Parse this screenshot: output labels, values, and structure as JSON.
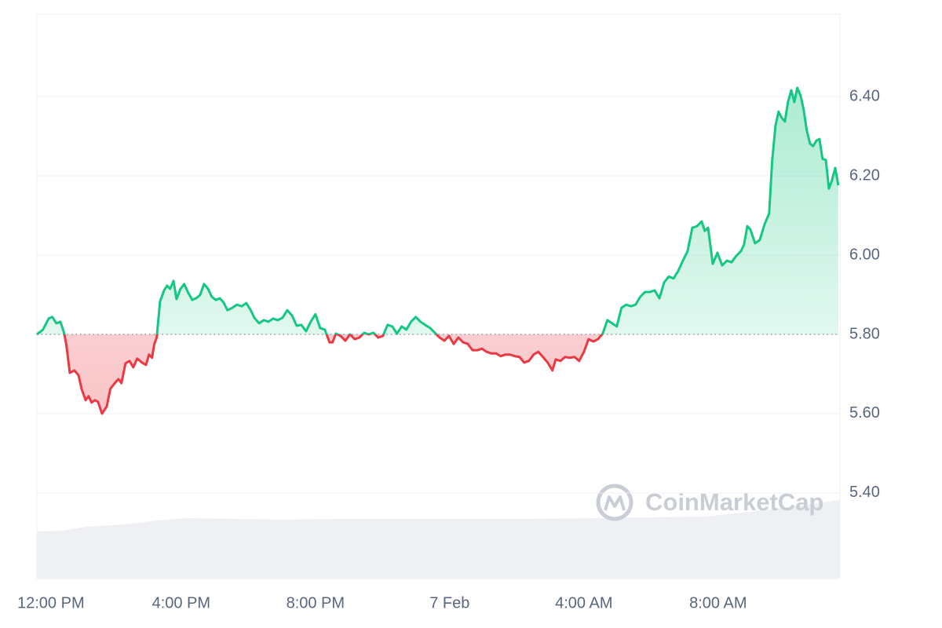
{
  "chart_data": {
    "type": "line",
    "watermark": "CoinMarketCap",
    "baseline": 5.8,
    "up_color": "#16c784",
    "down_color": "#ea3943",
    "grid": true,
    "ylim": [
      5.184,
      6.608
    ],
    "yticks": [
      {
        "value": 6.4,
        "label": "6.40"
      },
      {
        "value": 6.2,
        "label": "6.20"
      },
      {
        "value": 6.0,
        "label": "6.00"
      },
      {
        "value": 5.8,
        "label": "5.80"
      },
      {
        "value": 5.6,
        "label": "5.60"
      },
      {
        "value": 5.4,
        "label": "5.40"
      }
    ],
    "xlim": [
      11.7,
      35.63
    ],
    "xticks": [
      {
        "value": 12,
        "label": "12:00 PM"
      },
      {
        "value": 16,
        "label": "4:00 PM"
      },
      {
        "value": 20,
        "label": "8:00 PM"
      },
      {
        "value": 24,
        "label": "7 Feb"
      },
      {
        "value": 28,
        "label": "4:00 AM"
      },
      {
        "value": 32,
        "label": "8:00 AM"
      }
    ],
    "x": [
      11.7,
      11.88,
      12.05,
      12.16,
      12.28,
      12.4,
      12.51,
      12.58,
      12.68,
      12.82,
      12.94,
      13.03,
      13.15,
      13.24,
      13.33,
      13.43,
      13.52,
      13.64,
      13.78,
      13.89,
      14.04,
      14.13,
      14.22,
      14.34,
      14.46,
      14.57,
      14.69,
      14.83,
      14.95,
      15.04,
      15.13,
      15.2,
      15.27,
      15.37,
      15.49,
      15.58,
      15.67,
      15.77,
      15.86,
      15.98,
      16.09,
      16.21,
      16.33,
      16.44,
      16.56,
      16.68,
      16.8,
      16.91,
      17.03,
      17.15,
      17.26,
      17.38,
      17.52,
      17.66,
      17.8,
      17.94,
      18.06,
      18.18,
      18.32,
      18.46,
      18.6,
      18.74,
      18.88,
      19.02,
      19.16,
      19.3,
      19.44,
      19.58,
      19.72,
      19.86,
      20.0,
      20.14,
      20.28,
      20.42,
      20.51,
      20.61,
      20.75,
      20.89,
      21.03,
      21.17,
      21.31,
      21.45,
      21.59,
      21.73,
      21.87,
      22.01,
      22.15,
      22.29,
      22.43,
      22.57,
      22.71,
      22.85,
      22.99,
      23.13,
      23.27,
      23.42,
      23.56,
      23.7,
      23.84,
      23.98,
      24.12,
      24.26,
      24.4,
      24.54,
      24.68,
      24.82,
      24.96,
      25.1,
      25.24,
      25.38,
      25.52,
      25.66,
      25.8,
      25.94,
      26.08,
      26.22,
      26.36,
      26.5,
      26.64,
      26.78,
      26.92,
      27.06,
      27.16,
      27.3,
      27.44,
      27.58,
      27.72,
      27.86,
      28.0,
      28.14,
      28.28,
      28.42,
      28.56,
      28.7,
      28.84,
      28.98,
      29.12,
      29.26,
      29.4,
      29.54,
      29.68,
      29.82,
      29.96,
      30.11,
      30.25,
      30.39,
      30.53,
      30.67,
      30.81,
      30.95,
      31.09,
      31.23,
      31.37,
      31.51,
      31.6,
      31.7,
      31.84,
      31.98,
      32.12,
      32.26,
      32.4,
      32.54,
      32.68,
      32.77,
      32.87,
      32.96,
      33.1,
      33.24,
      33.38,
      33.52,
      33.61,
      33.71,
      33.8,
      33.89,
      33.99,
      34.08,
      34.18,
      34.27,
      34.36,
      34.46,
      34.55,
      34.64,
      34.74,
      34.83,
      34.93,
      35.02,
      35.11,
      35.21,
      35.3,
      35.39,
      35.49,
      35.58
    ],
    "values": [
      5.8,
      5.812,
      5.84,
      5.844,
      5.828,
      5.832,
      5.804,
      5.772,
      5.703,
      5.709,
      5.697,
      5.663,
      5.634,
      5.644,
      5.628,
      5.634,
      5.63,
      5.6,
      5.618,
      5.663,
      5.679,
      5.687,
      5.677,
      5.727,
      5.733,
      5.717,
      5.739,
      5.729,
      5.723,
      5.749,
      5.741,
      5.776,
      5.792,
      5.883,
      5.911,
      5.923,
      5.915,
      5.935,
      5.889,
      5.915,
      5.927,
      5.905,
      5.887,
      5.891,
      5.899,
      5.927,
      5.915,
      5.895,
      5.887,
      5.891,
      5.881,
      5.861,
      5.867,
      5.875,
      5.871,
      5.879,
      5.863,
      5.842,
      5.828,
      5.836,
      5.832,
      5.84,
      5.836,
      5.842,
      5.861,
      5.848,
      5.822,
      5.824,
      5.808,
      5.832,
      5.851,
      5.816,
      5.812,
      5.78,
      5.78,
      5.802,
      5.796,
      5.784,
      5.8,
      5.788,
      5.792,
      5.804,
      5.8,
      5.804,
      5.792,
      5.796,
      5.824,
      5.82,
      5.802,
      5.82,
      5.812,
      5.832,
      5.844,
      5.832,
      5.824,
      5.816,
      5.804,
      5.792,
      5.784,
      5.796,
      5.776,
      5.792,
      5.78,
      5.776,
      5.76,
      5.76,
      5.764,
      5.756,
      5.752,
      5.752,
      5.745,
      5.749,
      5.749,
      5.745,
      5.743,
      5.729,
      5.733,
      5.749,
      5.756,
      5.743,
      5.729,
      5.709,
      5.737,
      5.733,
      5.743,
      5.741,
      5.743,
      5.733,
      5.756,
      5.788,
      5.782,
      5.788,
      5.802,
      5.836,
      5.828,
      5.82,
      5.867,
      5.875,
      5.871,
      5.875,
      5.895,
      5.907,
      5.907,
      5.911,
      5.891,
      5.931,
      5.946,
      5.941,
      5.96,
      5.986,
      6.01,
      6.069,
      6.073,
      6.085,
      6.061,
      6.069,
      5.978,
      6.006,
      5.974,
      5.986,
      5.982,
      5.998,
      6.01,
      6.026,
      6.073,
      6.065,
      6.03,
      6.038,
      6.077,
      6.105,
      6.238,
      6.327,
      6.362,
      6.347,
      6.337,
      6.386,
      6.416,
      6.386,
      6.422,
      6.402,
      6.366,
      6.315,
      6.281,
      6.275,
      6.289,
      6.293,
      6.243,
      6.24,
      6.168,
      6.188,
      6.22,
      6.176
    ]
  }
}
